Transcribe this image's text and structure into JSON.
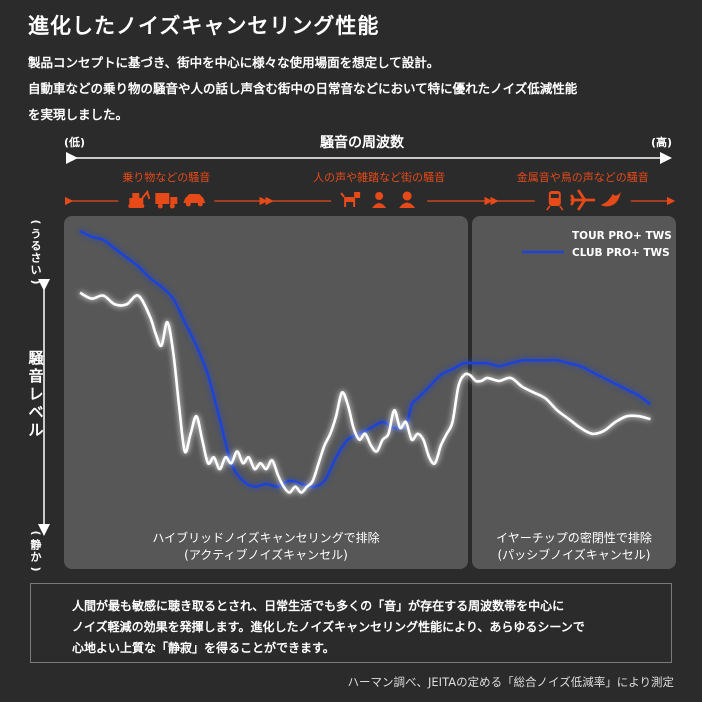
{
  "title": "進化したノイズキャンセリング性能",
  "intro": [
    "製品コンセプトに基づき、街中を中心に様々な使用場面を想定して設計。",
    "自動車などの乗り物の騒音や人の話し声含む街中の日常音などにおいて特に優れたノイズ低減性能",
    "を実現しました。"
  ],
  "note": [
    "人間が最も敏感に聴き取るとされ、日常生活でも多くの「音」が存在する周波数帯を中心に",
    "ノイズ軽減の効果を発揮します。進化したノイズキャンセリング性能により、あらゆるシーンで",
    "心地よい上質な「静寂」を得ることができます。"
  ],
  "footer": "ハーマン調べ、JEITAの定める「総合ノイズ低減率」により測定",
  "colors": {
    "background": "#2b2b2b",
    "panel": "#555555",
    "accent": "#e64a19",
    "tour": "#ffffff",
    "club": "#1f43d6"
  },
  "chart_data": {
    "type": "line",
    "xlabel": "騒音の周波数",
    "x_low_label": "(低)",
    "x_high_label": "(高)",
    "ylabel": "騒音レベル",
    "y_high_label": "(うるさい)",
    "y_low_label": "(静か)",
    "x_range": [
      0,
      100
    ],
    "y_range": [
      0,
      100
    ],
    "categories": [
      {
        "label": "乗り物などの騒音",
        "icons": [
          "excavator-icon",
          "truck-icon",
          "car-icon"
        ],
        "start": 0,
        "end": 33
      },
      {
        "label": "人の声や雑踏など街の騒音",
        "icons": [
          "dog-icon",
          "person-icon",
          "woman-icon"
        ],
        "start": 33,
        "end": 70
      },
      {
        "label": "金属音や鳥の声などの騒音",
        "icons": [
          "train-icon",
          "airplane-icon",
          "bird-icon"
        ],
        "start": 70,
        "end": 100
      }
    ],
    "regions": [
      {
        "label": "ハイブリッドノイズキャンセリングで排除",
        "sublabel": "(アクティブノイズキャンセル)",
        "start": 0,
        "end": 68
      },
      {
        "label": "イヤーチップの密閉性で排除",
        "sublabel": "(パッシブノイズキャンセル)",
        "start": 68,
        "end": 100
      }
    ],
    "legend_position": "top-right",
    "series": [
      {
        "name": "TOUR PRO+ TWS",
        "color": "#ffffff",
        "points": [
          [
            0,
            78
          ],
          [
            2,
            76
          ],
          [
            4,
            77
          ],
          [
            6,
            74
          ],
          [
            8,
            74
          ],
          [
            10,
            77
          ],
          [
            12,
            70
          ],
          [
            13,
            64
          ],
          [
            14,
            60
          ],
          [
            15,
            68
          ],
          [
            16,
            58
          ],
          [
            17,
            40
          ],
          [
            18,
            24
          ],
          [
            19,
            30
          ],
          [
            20,
            36
          ],
          [
            21,
            28
          ],
          [
            22,
            20
          ],
          [
            23,
            22
          ],
          [
            24,
            18
          ],
          [
            25,
            22
          ],
          [
            26,
            20
          ],
          [
            27,
            24
          ],
          [
            28,
            20
          ],
          [
            29,
            22
          ],
          [
            30,
            18
          ],
          [
            31,
            20
          ],
          [
            32,
            18
          ],
          [
            33,
            21
          ],
          [
            34,
            16
          ],
          [
            35,
            12
          ],
          [
            36,
            10
          ],
          [
            37,
            12
          ],
          [
            38,
            10
          ],
          [
            39,
            12
          ],
          [
            40,
            14
          ],
          [
            41,
            20
          ],
          [
            42,
            26
          ],
          [
            43,
            30
          ],
          [
            44,
            36
          ],
          [
            45,
            44
          ],
          [
            46,
            40
          ],
          [
            47,
            32
          ],
          [
            48,
            28
          ],
          [
            49,
            30
          ],
          [
            50,
            26
          ],
          [
            51,
            24
          ],
          [
            52,
            28
          ],
          [
            53,
            30
          ],
          [
            54,
            38
          ],
          [
            55,
            32
          ],
          [
            56,
            34
          ],
          [
            57,
            28
          ],
          [
            58,
            30
          ],
          [
            59,
            28
          ],
          [
            60,
            22
          ],
          [
            61,
            20
          ],
          [
            62,
            26
          ],
          [
            63,
            30
          ],
          [
            64,
            34
          ],
          [
            65,
            46
          ],
          [
            66,
            50
          ],
          [
            67,
            50
          ],
          [
            68,
            48
          ],
          [
            69,
            48
          ],
          [
            70,
            49
          ],
          [
            72,
            48
          ],
          [
            74,
            49
          ],
          [
            76,
            46
          ],
          [
            78,
            44
          ],
          [
            80,
            42
          ],
          [
            82,
            38
          ],
          [
            84,
            35
          ],
          [
            86,
            32
          ],
          [
            88,
            30
          ],
          [
            90,
            31
          ],
          [
            92,
            34
          ],
          [
            94,
            36
          ],
          [
            96,
            36
          ],
          [
            98,
            35
          ]
        ]
      },
      {
        "name": "CLUB PRO+ TWS",
        "color": "#1f43d6",
        "points": [
          [
            0,
            99
          ],
          [
            2,
            97
          ],
          [
            4,
            96
          ],
          [
            6,
            93
          ],
          [
            8,
            90
          ],
          [
            10,
            87
          ],
          [
            12,
            83
          ],
          [
            14,
            80
          ],
          [
            16,
            76
          ],
          [
            18,
            68
          ],
          [
            20,
            60
          ],
          [
            22,
            50
          ],
          [
            24,
            35
          ],
          [
            26,
            20
          ],
          [
            28,
            14
          ],
          [
            30,
            12
          ],
          [
            32,
            13
          ],
          [
            34,
            12
          ],
          [
            36,
            14
          ],
          [
            38,
            13
          ],
          [
            40,
            12
          ],
          [
            42,
            14
          ],
          [
            44,
            22
          ],
          [
            46,
            28
          ],
          [
            48,
            30
          ],
          [
            50,
            32
          ],
          [
            52,
            34
          ],
          [
            54,
            32
          ],
          [
            56,
            33
          ],
          [
            57,
            40
          ],
          [
            58,
            42
          ],
          [
            60,
            46
          ],
          [
            62,
            50
          ],
          [
            64,
            52
          ],
          [
            66,
            54
          ],
          [
            68,
            54
          ],
          [
            70,
            54
          ],
          [
            72,
            53
          ],
          [
            74,
            54
          ],
          [
            76,
            55
          ],
          [
            78,
            55
          ],
          [
            80,
            55
          ],
          [
            82,
            55
          ],
          [
            84,
            54
          ],
          [
            86,
            53
          ],
          [
            88,
            51
          ],
          [
            90,
            49
          ],
          [
            92,
            47
          ],
          [
            94,
            45
          ],
          [
            96,
            43
          ],
          [
            98,
            40
          ]
        ]
      }
    ]
  }
}
